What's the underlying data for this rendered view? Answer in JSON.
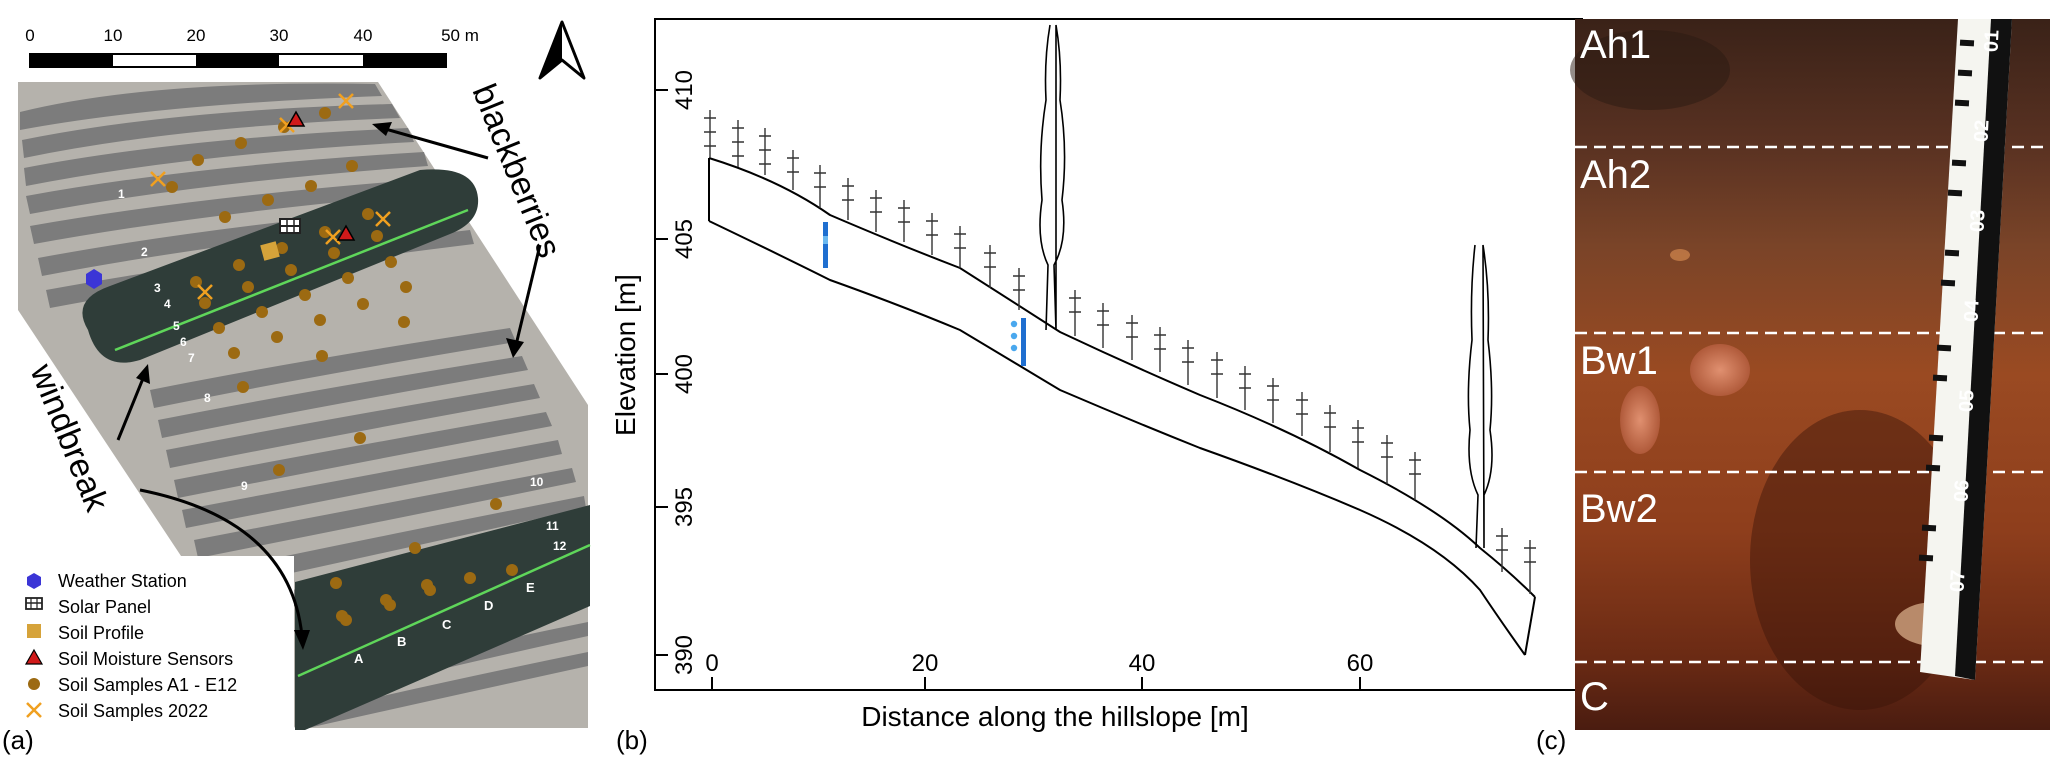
{
  "panel_a": {
    "label": "(a)",
    "scale": {
      "ticks": [
        "0",
        "10",
        "20",
        "30",
        "40",
        "50 m"
      ]
    },
    "north_arrow": "north-arrow-icon",
    "annotations": {
      "blackberries": "blackberries",
      "windbreak": "windbreak"
    },
    "row_numbers": [
      "1",
      "2",
      "3",
      "4",
      "5",
      "6",
      "7",
      "8",
      "9",
      "10",
      "11",
      "12"
    ],
    "column_letters": [
      "A",
      "B",
      "C",
      "D",
      "E"
    ],
    "legend": [
      {
        "label": "Weather Station",
        "icon": "hexagon-icon",
        "color": "#3b35d6"
      },
      {
        "label": "Solar Panel",
        "icon": "solar-panel-icon",
        "color": "#222222"
      },
      {
        "label": "Soil Profile",
        "icon": "square-icon",
        "color": "#d6a33a"
      },
      {
        "label": "Soil Moisture Sensors",
        "icon": "triangle-icon",
        "color": "#d11a1a"
      },
      {
        "label": "Soil Samples A1 - E12",
        "icon": "circle-icon",
        "color": "#9c6a12"
      },
      {
        "label": "Soil Samples 2022",
        "icon": "cross-icon",
        "color": "#f0a020"
      }
    ]
  },
  "panel_b": {
    "label": "(b)",
    "xlabel": "Distance along the hillslope [m]",
    "ylabel": "Elevation [m]",
    "x_ticks": [
      "0",
      "20",
      "40",
      "60"
    ],
    "y_ticks": [
      "390",
      "395",
      "400",
      "405",
      "410"
    ]
  },
  "panel_c": {
    "label": "(c)",
    "horizons": [
      "Ah1",
      "Ah2",
      "Bw1",
      "Bw2",
      "C"
    ],
    "ruler_marks": [
      "01",
      "02",
      "03",
      "04",
      "05",
      "06",
      "07"
    ]
  }
}
